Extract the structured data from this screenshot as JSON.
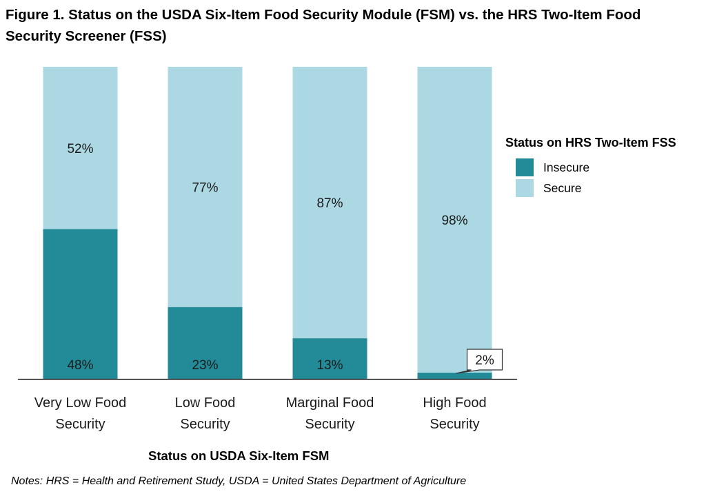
{
  "title": "Figure 1. Status on the USDA Six-Item Food Security Module (FSM) vs. the HRS Two-Item Food Security Screener (FSS)",
  "notes": "Notes: HRS = Health and Retirement Study, USDA = United States Department of Agriculture",
  "colors": {
    "insecure": "#238b97",
    "secure": "#acd8e4",
    "axis": "#000000"
  },
  "chart_data": {
    "type": "bar",
    "stacked": true,
    "percent_stacked": true,
    "title": "Figure 1. Status on the USDA Six-Item Food Security Module (FSM) vs. the HRS Two-Item Food Security Screener (FSS)",
    "xlabel": "Status on USDA Six-Item FSM",
    "ylabel": "",
    "ylim": [
      0,
      100
    ],
    "grid": false,
    "categories": [
      {
        "line1": "Very Low Food",
        "line2": "Security"
      },
      {
        "line1": "Low Food",
        "line2": "Security"
      },
      {
        "line1": "Marginal Food",
        "line2": "Security"
      },
      {
        "line1": "High Food",
        "line2": "Security"
      }
    ],
    "series": [
      {
        "name": "Insecure",
        "values": [
          48,
          23,
          13,
          2
        ],
        "labels": [
          "48%",
          "23%",
          "13%",
          "2%"
        ]
      },
      {
        "name": "Secure",
        "values": [
          52,
          77,
          87,
          98
        ],
        "labels": [
          "52%",
          "77%",
          "87%",
          "98%"
        ]
      }
    ],
    "legend": {
      "title": "Status on HRS Two-Item FSS",
      "position": "right"
    }
  }
}
